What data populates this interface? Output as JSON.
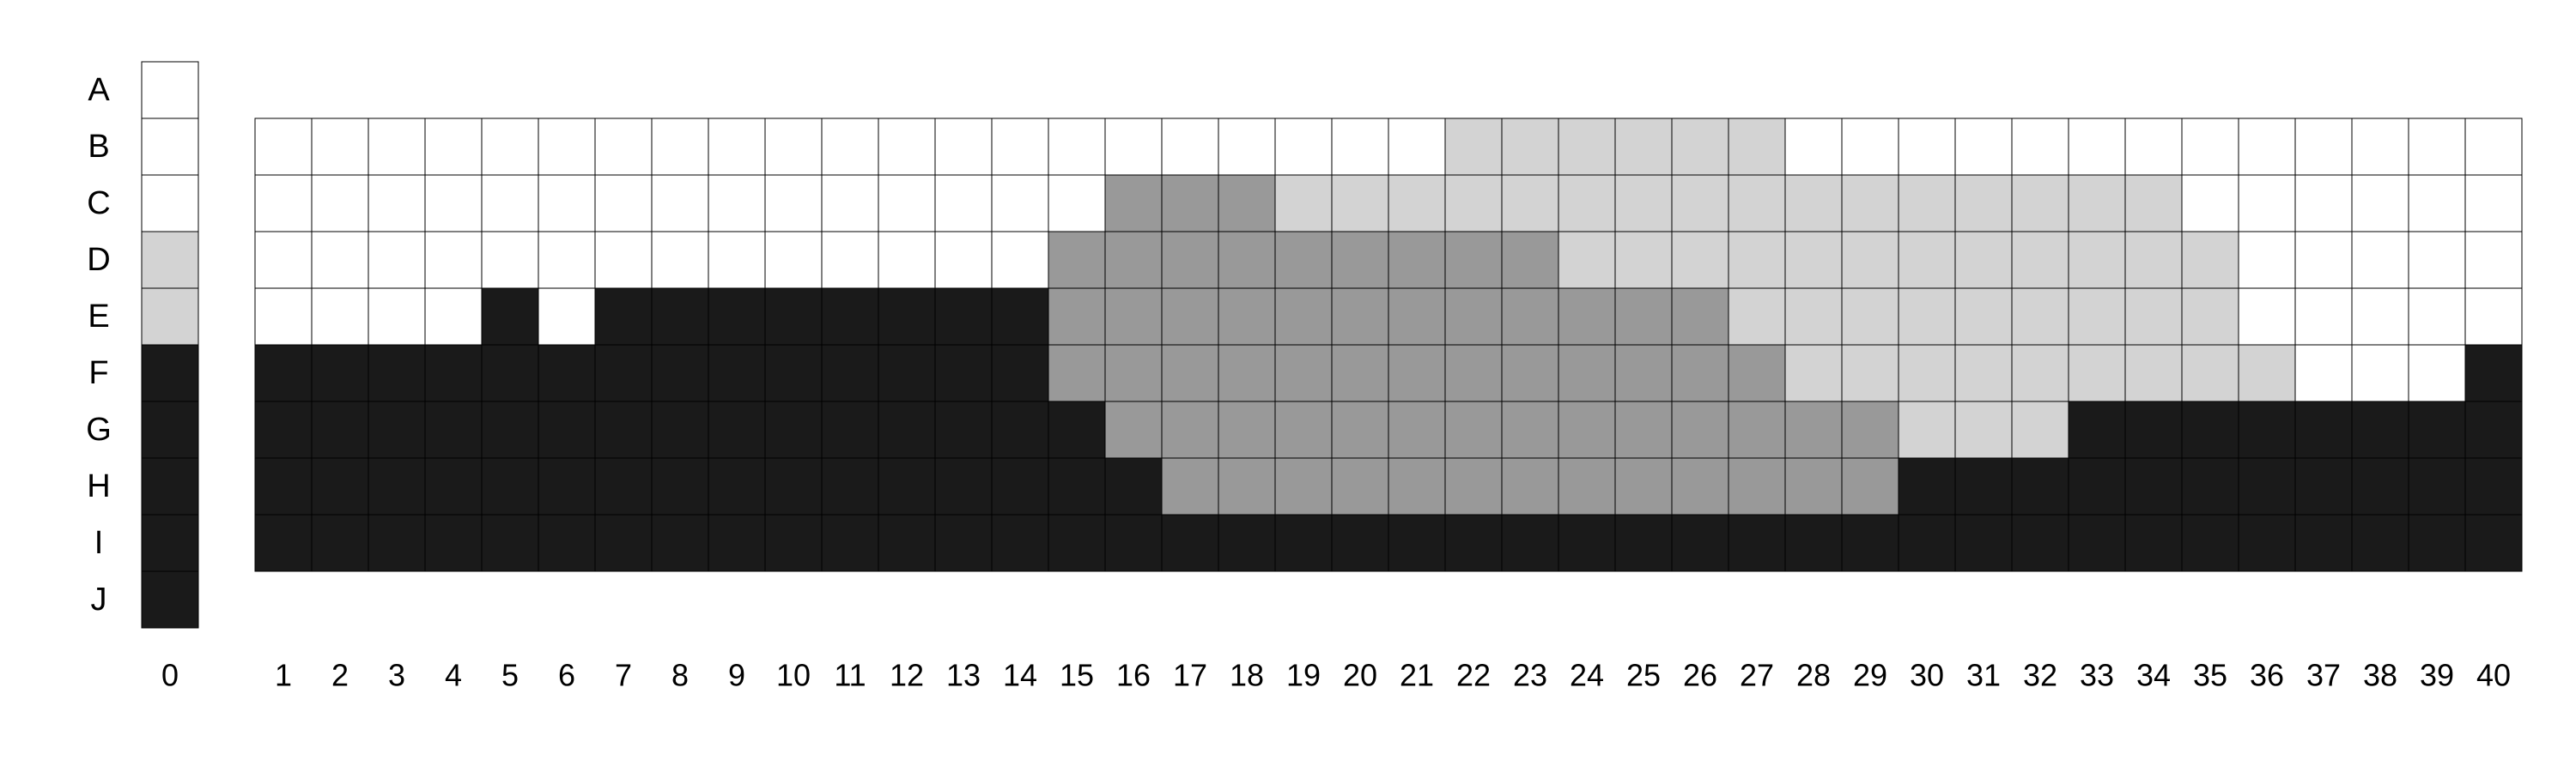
{
  "chart_data": {
    "type": "heatmap",
    "rows": [
      "A",
      "B",
      "C",
      "D",
      "E",
      "F",
      "G",
      "H",
      "I",
      "J"
    ],
    "reference_column": {
      "label": "0",
      "values": [
        0,
        0,
        0,
        1,
        1,
        3,
        3,
        3,
        3,
        3
      ]
    },
    "columns": [
      "1",
      "2",
      "3",
      "4",
      "5",
      "6",
      "7",
      "8",
      "9",
      "10",
      "11",
      "12",
      "13",
      "14",
      "15",
      "16",
      "17",
      "18",
      "19",
      "20",
      "21",
      "22",
      "23",
      "24",
      "25",
      "26",
      "27",
      "28",
      "29",
      "30",
      "31",
      "32",
      "33",
      "34",
      "35",
      "36",
      "37",
      "38",
      "39",
      "40"
    ],
    "grid_rows": [
      "B",
      "C",
      "D",
      "E",
      "F",
      "G",
      "H",
      "I"
    ],
    "grid_values": [
      [
        0,
        0,
        0,
        0,
        0,
        0,
        0,
        0,
        0,
        0,
        0,
        0,
        0,
        0,
        0,
        0,
        0,
        0,
        0,
        0,
        0,
        1,
        1,
        1,
        1,
        1,
        1,
        0,
        0,
        0,
        0,
        0,
        0,
        0,
        0,
        0,
        0,
        0,
        0,
        0
      ],
      [
        0,
        0,
        0,
        0,
        0,
        0,
        0,
        0,
        0,
        0,
        0,
        0,
        0,
        0,
        0,
        2,
        2,
        2,
        1,
        1,
        1,
        1,
        1,
        1,
        1,
        1,
        1,
        1,
        1,
        1,
        1,
        1,
        1,
        1,
        0,
        0,
        0,
        0,
        0,
        0
      ],
      [
        0,
        0,
        0,
        0,
        0,
        0,
        0,
        0,
        0,
        0,
        0,
        0,
        0,
        0,
        2,
        2,
        2,
        2,
        2,
        2,
        2,
        2,
        2,
        1,
        1,
        1,
        1,
        1,
        1,
        1,
        1,
        1,
        1,
        1,
        1,
        0,
        0,
        0,
        0,
        0
      ],
      [
        0,
        0,
        0,
        0,
        3,
        0,
        3,
        3,
        3,
        3,
        3,
        3,
        3,
        3,
        2,
        2,
        2,
        2,
        2,
        2,
        2,
        2,
        2,
        2,
        2,
        2,
        1,
        1,
        1,
        1,
        1,
        1,
        1,
        1,
        1,
        0,
        0,
        0,
        0,
        0
      ],
      [
        3,
        3,
        3,
        3,
        3,
        3,
        3,
        3,
        3,
        3,
        3,
        3,
        3,
        3,
        2,
        2,
        2,
        2,
        2,
        2,
        2,
        2,
        2,
        2,
        2,
        2,
        2,
        1,
        1,
        1,
        1,
        1,
        1,
        1,
        1,
        1,
        0,
        0,
        0,
        3
      ],
      [
        3,
        3,
        3,
        3,
        3,
        3,
        3,
        3,
        3,
        3,
        3,
        3,
        3,
        3,
        3,
        2,
        2,
        2,
        2,
        2,
        2,
        2,
        2,
        2,
        2,
        2,
        2,
        2,
        2,
        1,
        1,
        1,
        3,
        3,
        3,
        3,
        3,
        3,
        3,
        3
      ],
      [
        3,
        3,
        3,
        3,
        3,
        3,
        3,
        3,
        3,
        3,
        3,
        3,
        3,
        3,
        3,
        3,
        2,
        2,
        2,
        2,
        2,
        2,
        2,
        2,
        2,
        2,
        2,
        2,
        2,
        3,
        3,
        3,
        3,
        3,
        3,
        3,
        3,
        3,
        3,
        3
      ],
      [
        3,
        3,
        3,
        3,
        3,
        3,
        3,
        3,
        3,
        3,
        3,
        3,
        3,
        3,
        3,
        3,
        3,
        3,
        3,
        3,
        3,
        3,
        3,
        3,
        3,
        3,
        3,
        3,
        3,
        3,
        3,
        3,
        3,
        3,
        3,
        3,
        3,
        3,
        3,
        3
      ]
    ],
    "levels": {
      "0": "#ffffff",
      "1": "#d3d3d3",
      "2": "#999999",
      "3": "#1a1a1a"
    },
    "grid": true,
    "title": "",
    "xlabel": "",
    "ylabel": ""
  }
}
